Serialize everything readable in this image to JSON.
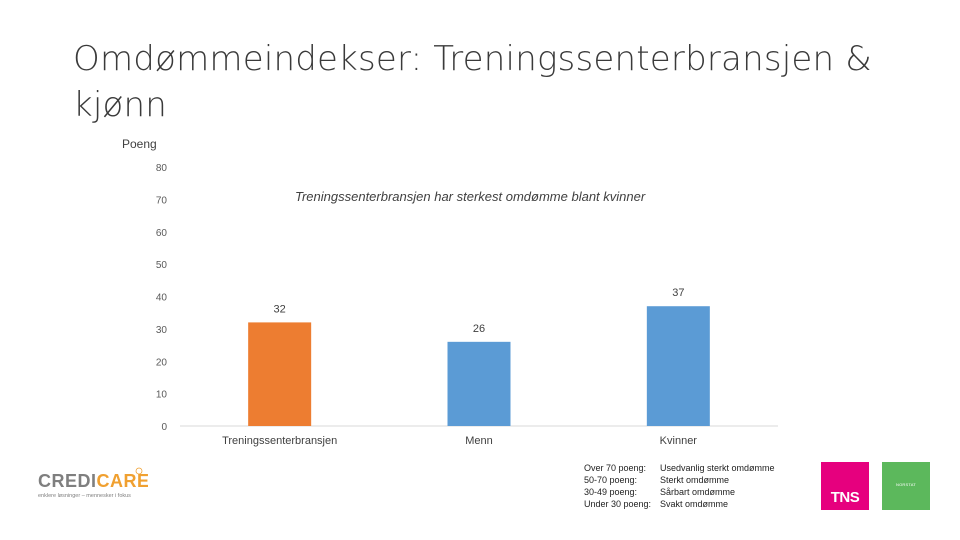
{
  "slide": {
    "title": "Omdømmeindekser: Treningssenterbransjen & kjønn"
  },
  "chart_data": {
    "type": "bar",
    "title": "",
    "ylabel": "Poeng",
    "xlabel": "",
    "categories": [
      "Treningssenterbransjen",
      "Menn",
      "Kvinner"
    ],
    "values": [
      32,
      26,
      37
    ],
    "data_labels": [
      "32",
      "26",
      "37"
    ],
    "bar_colors": [
      "#ed7d31",
      "#5b9bd5",
      "#5b9bd5"
    ],
    "ylim": [
      0,
      80
    ],
    "y_ticks": [
      "0",
      "10",
      "20",
      "30",
      "40",
      "50",
      "60",
      "70",
      "80"
    ],
    "grid": false,
    "annotation": "Treningssenterbransjen har sterkest omdømme blant kvinner"
  },
  "legend": [
    {
      "key": "Over 70 poeng:",
      "value": "Usedvanlig sterkt omdømme"
    },
    {
      "key": "50-70 poeng:",
      "value": "Sterkt omdømme"
    },
    {
      "key": "30-49 poeng:",
      "value": "Sårbart omdømme"
    },
    {
      "key": "Under 30 poeng:",
      "value": "Svakt omdømme"
    }
  ],
  "logos": {
    "credicare_name": "CREDICARE",
    "credicare_tagline": "enklere løsninger – mennesker i fokus",
    "tns_label": "TNS",
    "green_label": "NORSTAT",
    "tns_color": "#e6007e",
    "green_color": "#5cb85c",
    "credicare_color": "#f0a030"
  }
}
